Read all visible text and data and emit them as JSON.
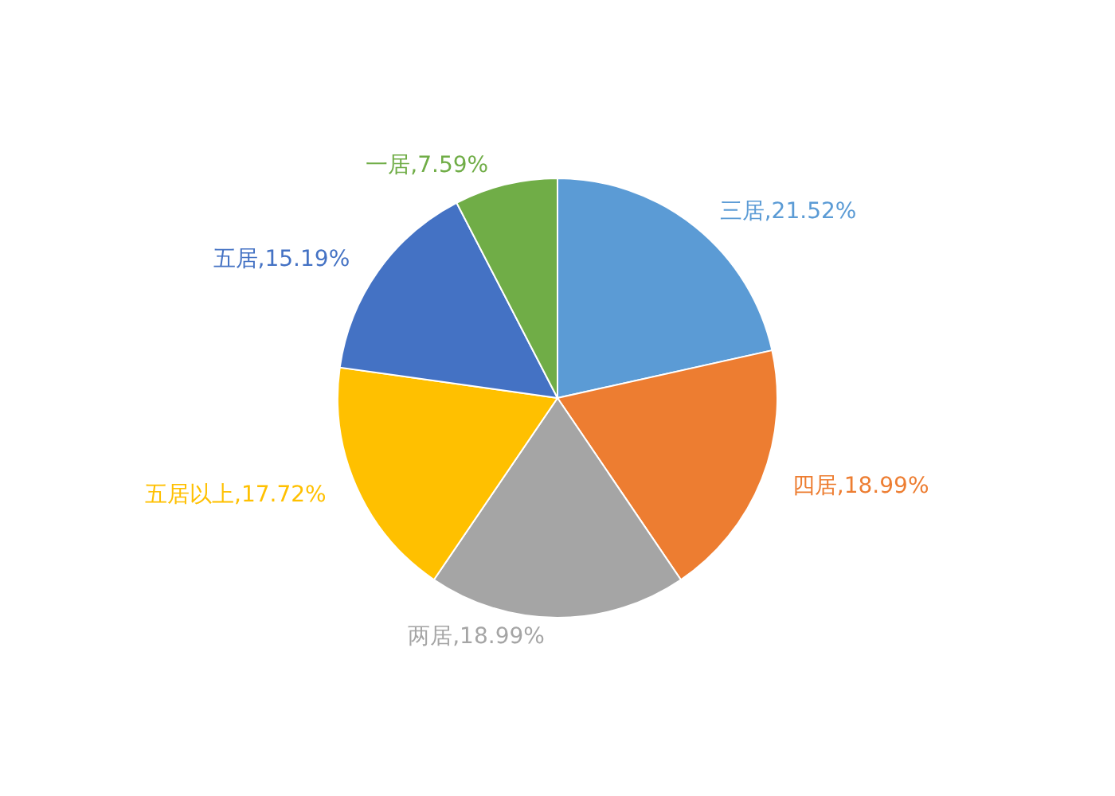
{
  "chart_data": {
    "type": "pie",
    "categories": [
      "三居",
      "四居",
      "两居",
      "五居以上",
      "五居",
      "一居"
    ],
    "values": [
      21.52,
      18.99,
      18.99,
      17.72,
      15.19,
      7.59
    ],
    "colors": [
      "#5b9bd5",
      "#ed7d31",
      "#a5a5a5",
      "#ffc000",
      "#4472c4",
      "#70ad47"
    ],
    "value_labels": [
      "21.52%",
      "18.99%",
      "18.99%",
      "17.72%",
      "15.19%",
      "7.59%"
    ]
  }
}
